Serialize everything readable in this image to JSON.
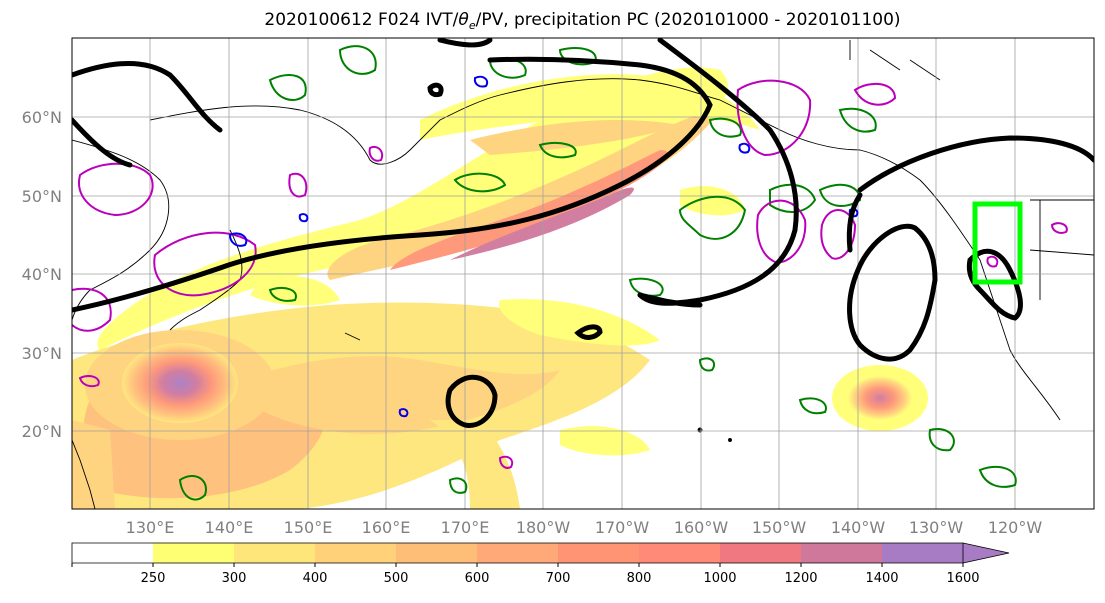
{
  "title": {
    "run": "2020100612",
    "lead": "F024",
    "ivt": "IVT/",
    "theta": "θ",
    "theta_sub": "e",
    "rest": "/PV, precipitation PC (2020101000 - 2020101100)"
  },
  "lat_labels": [
    "60°N",
    "50°N",
    "40°N",
    "30°N",
    "20°N"
  ],
  "lon_labels": [
    "130°E",
    "140°E",
    "150°E",
    "160°E",
    "170°E",
    "180°W",
    "170°W",
    "160°W",
    "150°W",
    "140°W",
    "130°W",
    "120°W"
  ],
  "colorbar": {
    "ticks": [
      "250",
      "300",
      "400",
      "500",
      "600",
      "700",
      "800",
      "1000",
      "1200",
      "1400",
      "1600"
    ],
    "colors": [
      "#ffffff",
      "#ffff73",
      "#ffe67a",
      "#ffd27a",
      "#ffbe78",
      "#ffa878",
      "#ff9474",
      "#ff8a78",
      "#f07880",
      "#d0789c",
      "#a87cc4"
    ],
    "extend": "max"
  },
  "colors": {
    "ivt_low": "#ffff73",
    "ivt_high": "#a87cc4",
    "jet_contour": "#000000",
    "theta_contour": "#008000",
    "pv_contour": "#bb00bb",
    "precip_contour": "#0000ee",
    "region_box": "#00ff00",
    "grid": "#a0a0a0",
    "axis_label": "#808080"
  },
  "map": {
    "lon_range": [
      "120°E",
      "115°W"
    ],
    "lat_range": [
      "10°N",
      "70°N"
    ],
    "projection": "PlateCarree, central longitude 180"
  }
}
